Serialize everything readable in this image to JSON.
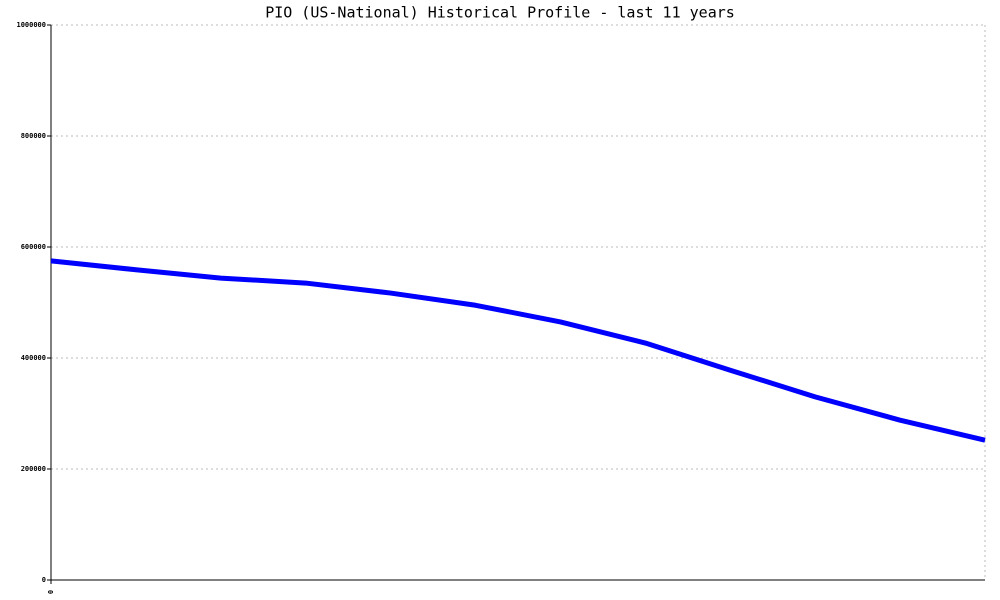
{
  "chart_data": {
    "type": "line",
    "title": "PIO (US-National) Historical Profile - last 11 years",
    "x": [
      0,
      1,
      2,
      3,
      4,
      5,
      6,
      7,
      8,
      9,
      10,
      11
    ],
    "xlim": [
      0,
      11
    ],
    "xticks": [
      0
    ],
    "series": [
      {
        "color": "#0000ff",
        "values": [
          575000,
          559000,
          544000,
          535000,
          517000,
          495000,
          465000,
          427000,
          378000,
          330000,
          288000,
          252000
        ]
      }
    ],
    "ylim": [
      0,
      1000000
    ],
    "yticks": [
      0,
      200000,
      400000,
      600000,
      800000,
      1000000
    ],
    "grid": true
  }
}
